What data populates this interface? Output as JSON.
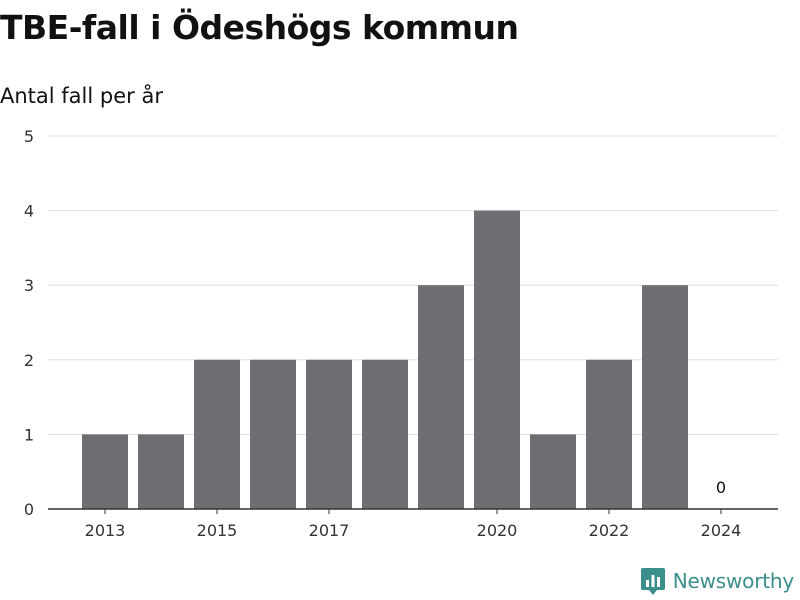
{
  "title": "TBE-fall i Ödeshögs kommun",
  "subtitle": "Antal fall per år",
  "brand": {
    "name": "Newsworthy",
    "logo_icon": "newsworthy-logo-icon",
    "color": "#3a8f8b"
  },
  "chart_data": {
    "type": "bar",
    "categories": [
      "2013",
      "2014",
      "2015",
      "2016",
      "2017",
      "2018",
      "2019",
      "2020",
      "2021",
      "2022",
      "2023",
      "2024"
    ],
    "values": [
      1,
      1,
      2,
      2,
      2,
      2,
      3,
      4,
      1,
      2,
      3,
      0
    ],
    "x_tick_labels": [
      "2013",
      "2015",
      "2017",
      "2020",
      "2022",
      "2024"
    ],
    "y_ticks": [
      0,
      1,
      2,
      3,
      4,
      5
    ],
    "ylim": [
      0,
      5
    ],
    "grid": true,
    "data_labels": [
      {
        "category": "2024",
        "text": "0"
      }
    ],
    "bar_color": "#6f6e73",
    "grid_color": "#dddddd",
    "axis_color": "#333333"
  }
}
